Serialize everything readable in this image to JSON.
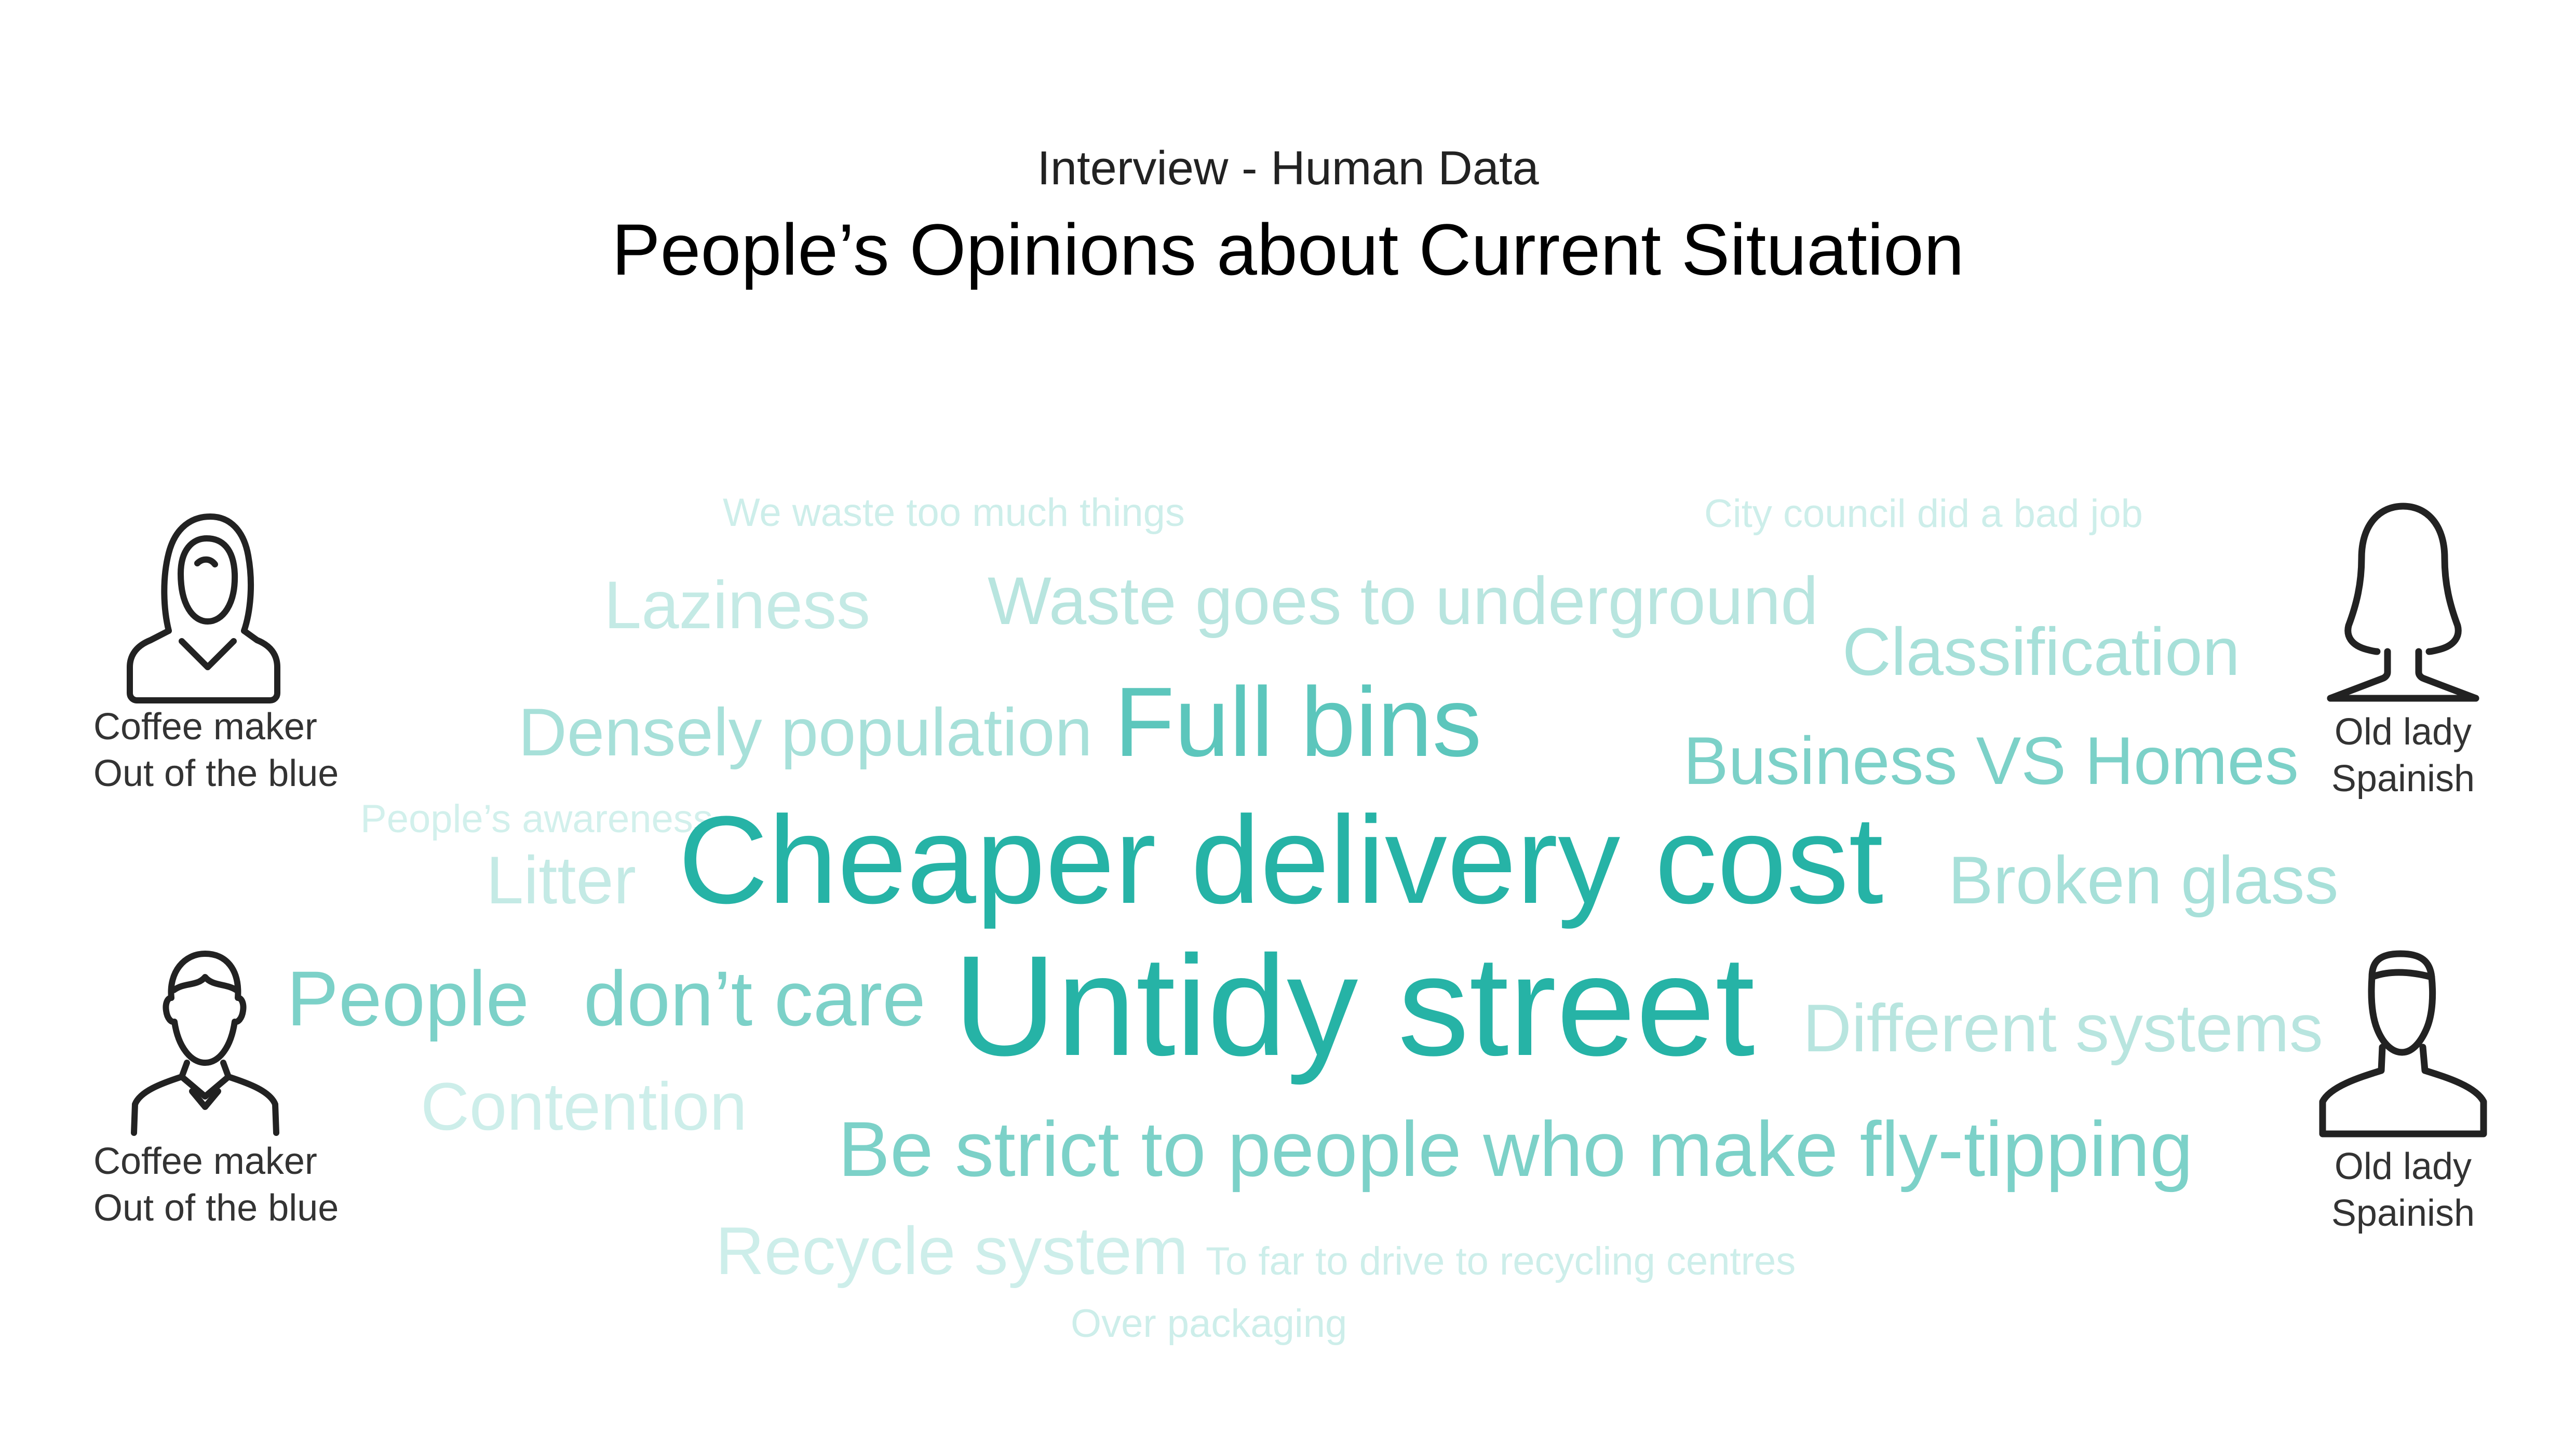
{
  "header": {
    "subtitle": "Interview - Human Data",
    "title": "People’s Opinions about Current Situation"
  },
  "personas": [
    {
      "icon": "woman-icon",
      "role": "Coffee maker",
      "source": "Out of the blue"
    },
    {
      "icon": "man-icon",
      "role": "Coffee maker",
      "source": "Out of the blue"
    },
    {
      "icon": "woman-silhouette-icon",
      "role": "Old lady",
      "source": "Spainish"
    },
    {
      "icon": "person-silhouette-icon",
      "role": "Old lady",
      "source": "Spainish"
    }
  ],
  "colors": {
    "text": "#111111",
    "accent_strong": "#26B3A6",
    "accent_mid": "#5CC6BC",
    "accent_light": "#A7E0D9",
    "accent_faint": "#CDEEEA",
    "icon_stroke": "#222222"
  },
  "word_cloud": {
    "words": [
      "We waste too much things",
      "City council did a bad job",
      "Laziness",
      "Waste goes to underground",
      "Classification",
      "Densely population",
      "Full bins",
      "Business VS Homes",
      "People’s awareness",
      "Cheaper delivery cost",
      "Litter",
      "Broken glass",
      "People",
      "don’t care",
      "Untidy street",
      "Different systems",
      "Contention",
      "Be strict to people who make fly-tipping",
      "Recycle system",
      "To far to drive to recycling centres",
      "Over packaging"
    ]
  }
}
